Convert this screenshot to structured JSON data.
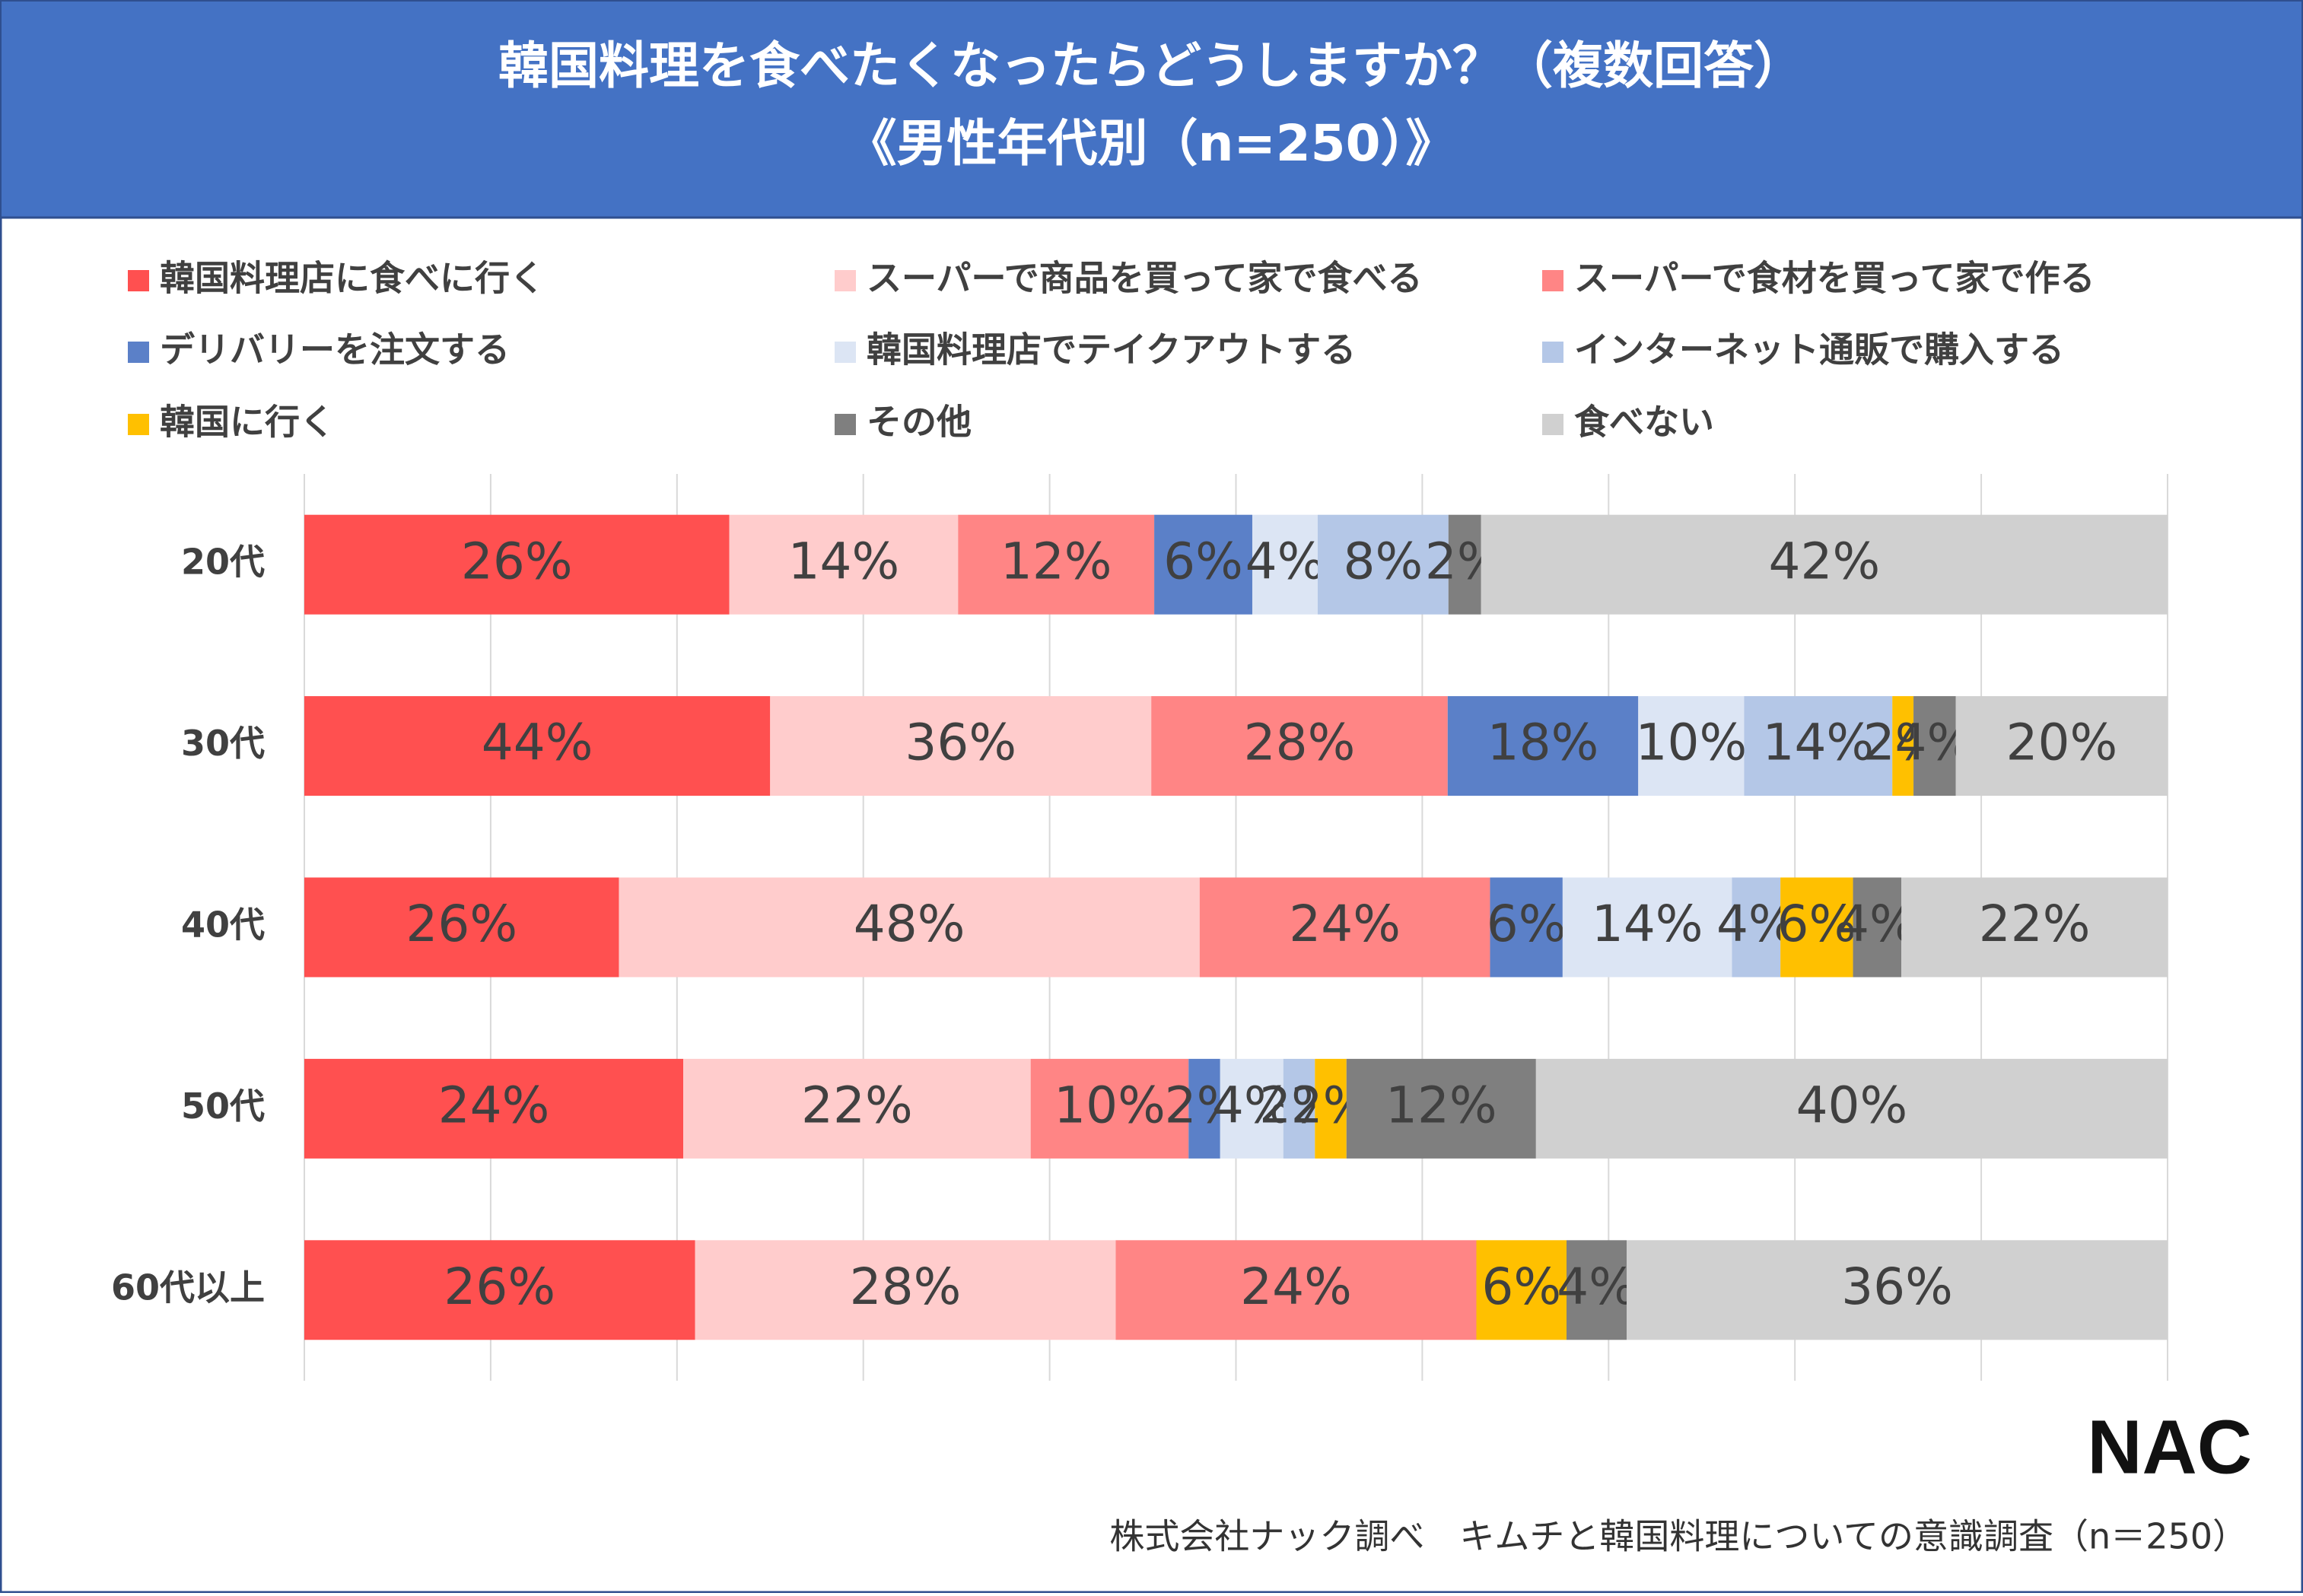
{
  "chart_data": {
    "type": "bar",
    "orientation": "horizontal",
    "stacking": "percent",
    "title": "韓国料理を食べたくなったらどうしますか？（複数回答）",
    "subtitle": "《男性年代別（n=250）》",
    "categories": [
      "20代",
      "30代",
      "40代",
      "50代",
      "60代以上"
    ],
    "series": [
      {
        "name": "韓国料理店に食べに行く",
        "color": "#ff5050",
        "values": [
          26,
          44,
          26,
          24,
          26
        ],
        "value_labels": [
          "26%",
          "44%",
          "26%",
          "24%",
          "26%"
        ]
      },
      {
        "name": "スーパーで商品を買って家で食べる",
        "color": "#ffcccc",
        "values": [
          14,
          36,
          48,
          22,
          28
        ],
        "value_labels": [
          "14%",
          "36%",
          "48%",
          "22%",
          "28%"
        ]
      },
      {
        "name": "スーパーで食材を買って家で作る",
        "color": "#ff8585",
        "values": [
          12,
          28,
          24,
          10,
          24
        ],
        "value_labels": [
          "12%",
          "28%",
          "24%",
          "10%",
          "24%"
        ]
      },
      {
        "name": "デリバリーを注文する",
        "color": "#5b80c8",
        "values": [
          6,
          18,
          6,
          2,
          0
        ],
        "value_labels": [
          "6%",
          "18%",
          "6%",
          "2%",
          null
        ]
      },
      {
        "name": "韓国料理店でテイクアウトする",
        "color": "#dce5f4",
        "values": [
          4,
          10,
          14,
          4,
          0
        ],
        "value_labels": [
          "4%",
          "10%",
          "14%",
          "4%",
          null
        ]
      },
      {
        "name": "インターネット通販で購入する",
        "color": "#b4c7e7",
        "values": [
          8,
          14,
          4,
          2,
          0
        ],
        "value_labels": [
          "8%",
          "14%",
          "4%",
          "2%",
          null
        ]
      },
      {
        "name": "韓国に行く",
        "color": "#ffc000",
        "values": [
          0,
          2,
          6,
          2,
          6
        ],
        "value_labels": [
          null,
          "2%",
          "6%",
          "2%",
          "6%"
        ]
      },
      {
        "name": "その他",
        "color": "#7f7f7f",
        "values": [
          2,
          4,
          4,
          12,
          4
        ],
        "value_labels": [
          "2%",
          "4%",
          "4%",
          "12%",
          "4%"
        ]
      },
      {
        "name": "食べない",
        "color": "#d0d0d0",
        "values": [
          42,
          20,
          22,
          40,
          36
        ],
        "value_labels": [
          "42%",
          "20%",
          "22%",
          "40%",
          "36%"
        ]
      }
    ],
    "xlim": [
      0,
      100
    ],
    "xticks": [
      0,
      10,
      20,
      30,
      40,
      50,
      60,
      70,
      80,
      90,
      100
    ],
    "grid": true,
    "logo": "NAC",
    "source": "株式会社ナック調べ　キムチと韓国料理についての意識調査（n＝250）"
  }
}
